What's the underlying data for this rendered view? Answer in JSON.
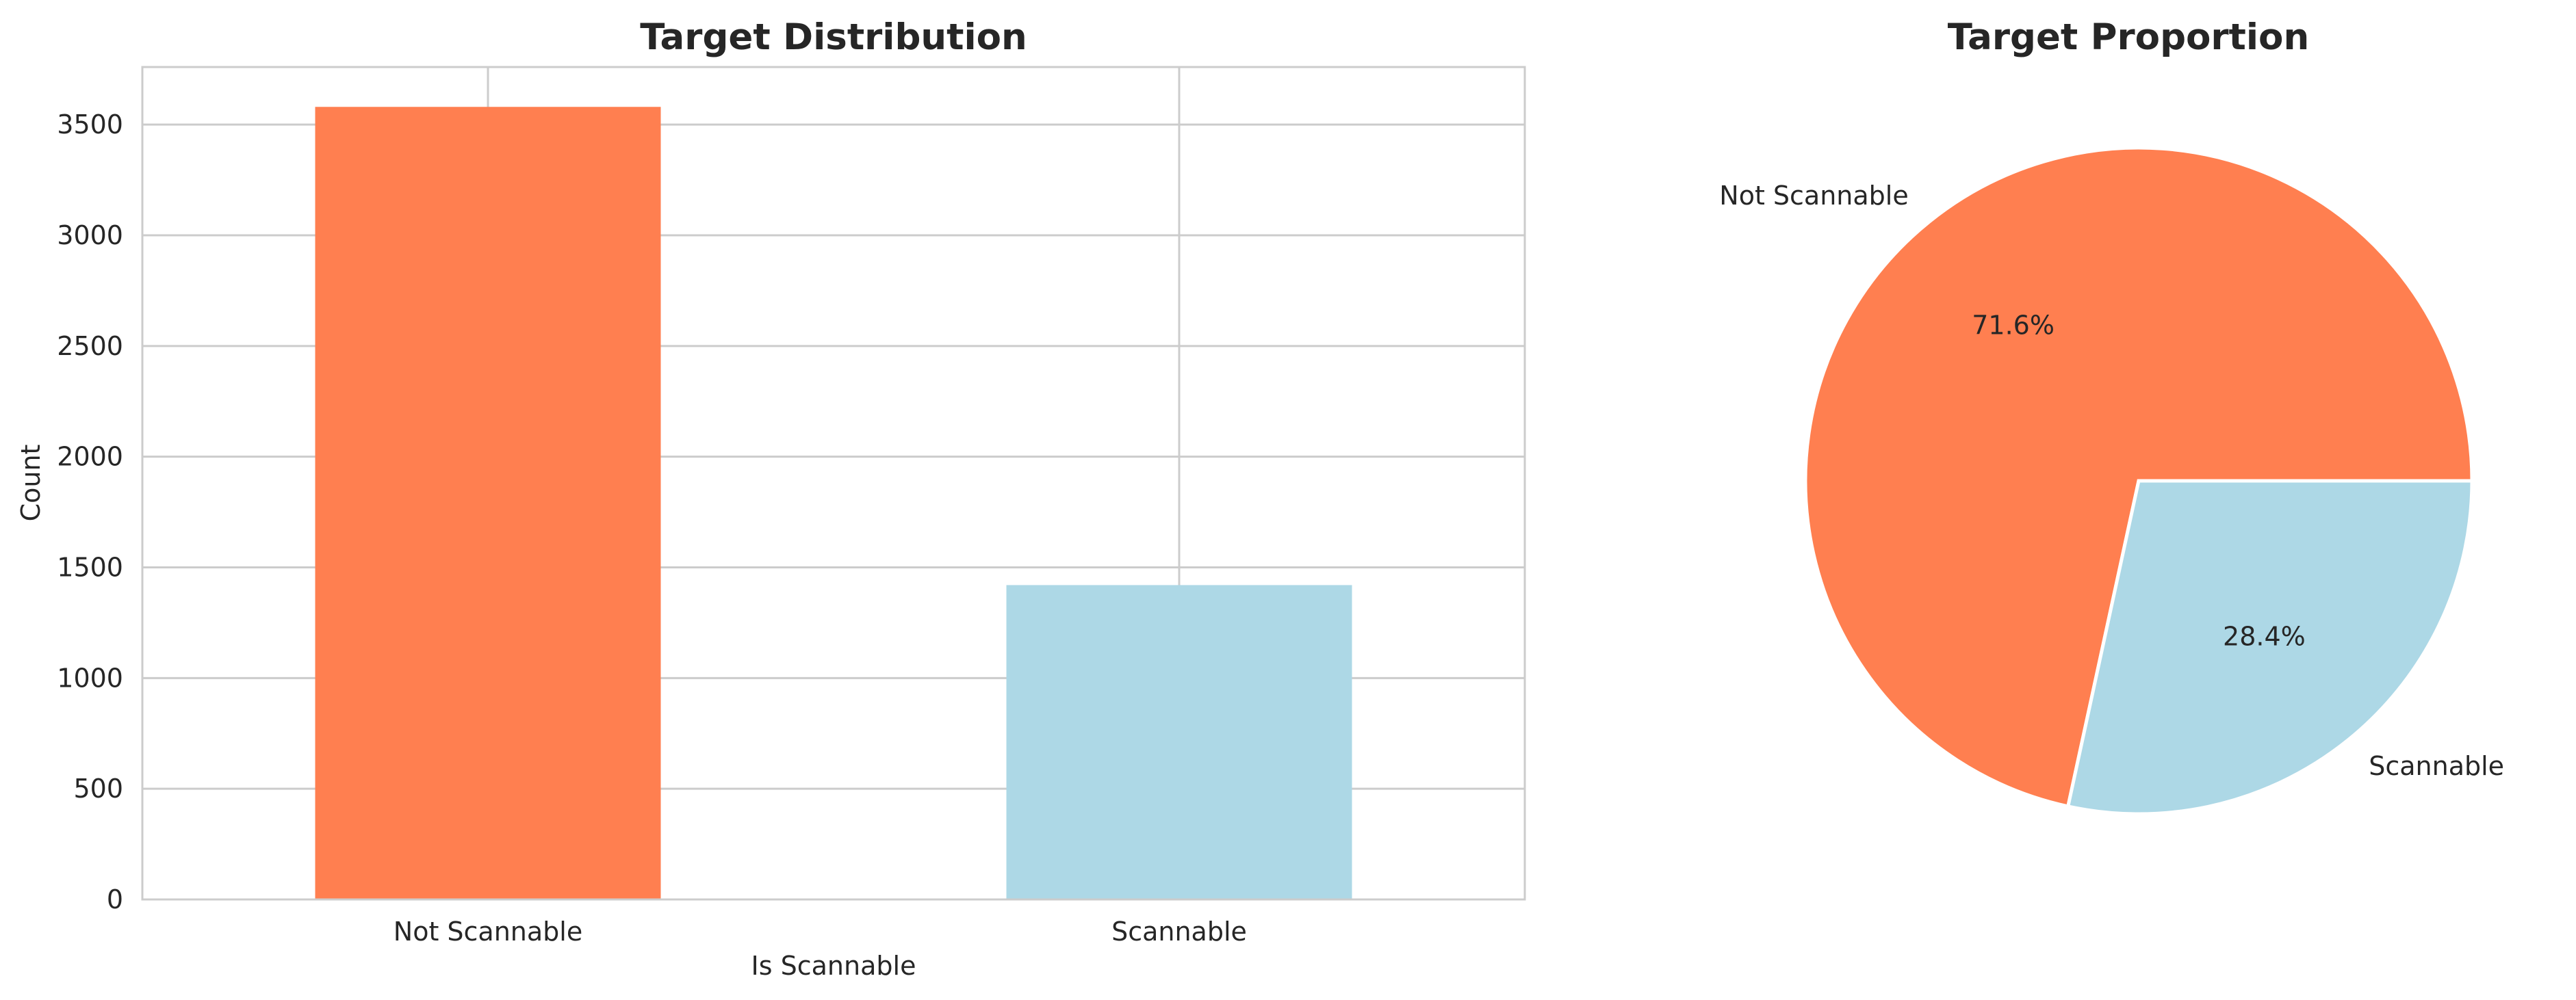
{
  "chart_data": [
    {
      "type": "bar",
      "title": "Target Distribution",
      "xlabel": "Is Scannable",
      "ylabel": "Count",
      "categories": [
        "Not Scannable",
        "Scannable"
      ],
      "values": [
        3580,
        1420
      ],
      "ylim": [
        0,
        3760
      ],
      "yticks": [
        0,
        500,
        1000,
        1500,
        2000,
        2500,
        3000,
        3500
      ],
      "colors": [
        "#ff7f50",
        "#add8e6"
      ],
      "grid": true
    },
    {
      "type": "pie",
      "title": "Target Proportion",
      "labels": [
        "Not Scannable",
        "Scannable"
      ],
      "values": [
        71.6,
        28.4
      ],
      "autopct_labels": [
        "71.6%",
        "28.4%"
      ],
      "colors": [
        "#ff7f50",
        "#add8e6"
      ]
    }
  ]
}
